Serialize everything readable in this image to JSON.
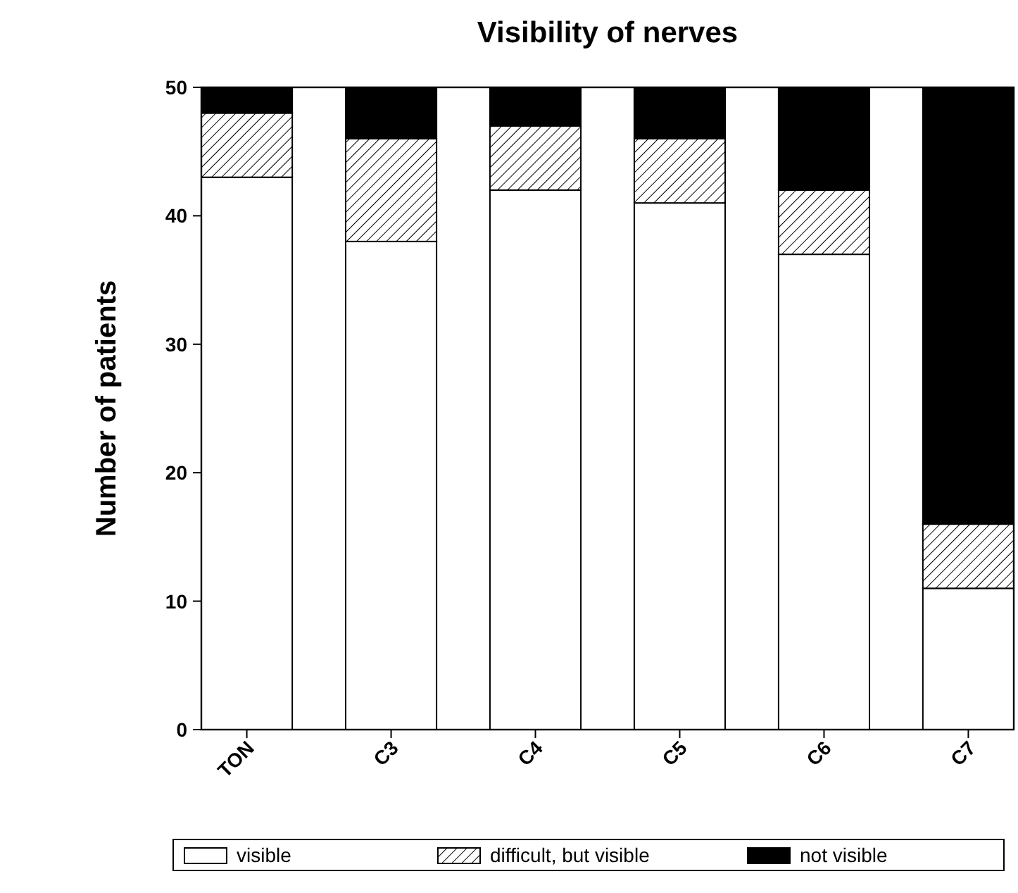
{
  "chart_data": {
    "type": "bar",
    "title": "Visibility of nerves",
    "ylabel": "Number of patients",
    "categories": [
      "TON",
      "C3",
      "C4",
      "C5",
      "C6",
      "C7"
    ],
    "stacked": true,
    "series": [
      {
        "name": "visible",
        "color": "#ffffff",
        "values": [
          43,
          38,
          42,
          41,
          37,
          11
        ]
      },
      {
        "name": "difficult, but visible",
        "color": "#000000",
        "values": [
          5,
          8,
          5,
          5,
          5,
          5
        ]
      },
      {
        "name": "not visible",
        "color": "#000000",
        "values": [
          2,
          4,
          3,
          4,
          8,
          34
        ]
      }
    ],
    "ylim": [
      0,
      50
    ],
    "yticks": [
      0,
      10,
      20,
      30,
      40,
      50
    ],
    "grid": false,
    "legend": "bottom"
  }
}
